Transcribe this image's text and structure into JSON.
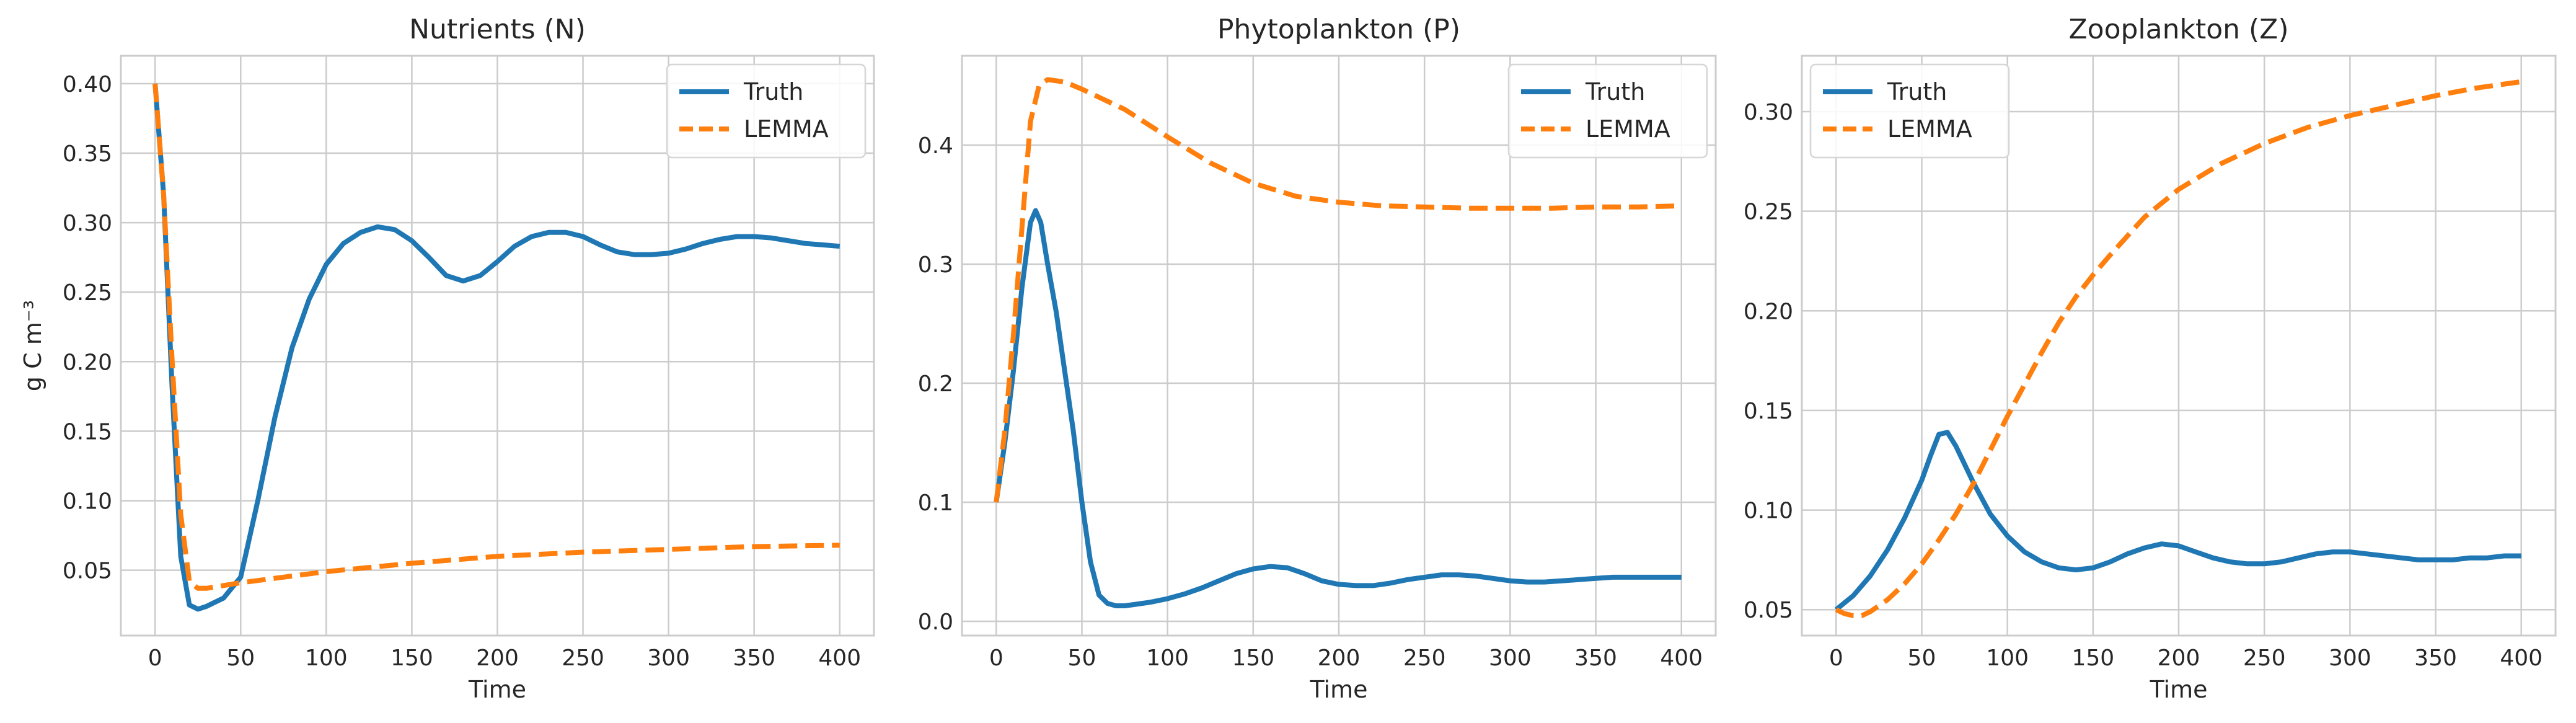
{
  "colors": {
    "truth": "#1f77b4",
    "lemma": "#ff7f0e",
    "grid": "#cccccc",
    "frame": "#cccccc"
  },
  "chart_data": [
    {
      "type": "line",
      "title": "Nutrients (N)",
      "xlabel": "Time",
      "ylabel": "g C m⁻³",
      "xlim": [
        -20,
        420
      ],
      "ylim": [
        0.003,
        0.42
      ],
      "xticks": [
        0,
        50,
        100,
        150,
        200,
        250,
        300,
        350,
        400
      ],
      "yticks": [
        0.05,
        0.1,
        0.15,
        0.2,
        0.25,
        0.3,
        0.35,
        0.4
      ],
      "ytick_labels": [
        "0.05",
        "0.10",
        "0.15",
        "0.20",
        "0.25",
        "0.30",
        "0.35",
        "0.40"
      ],
      "grid": true,
      "legend": "top-right",
      "series": [
        {
          "name": "Truth",
          "style": "solid",
          "color": "#1f77b4",
          "x": [
            0,
            5,
            10,
            15,
            20,
            25,
            30,
            40,
            50,
            60,
            70,
            80,
            90,
            100,
            110,
            120,
            130,
            140,
            150,
            160,
            170,
            180,
            190,
            200,
            210,
            220,
            230,
            240,
            250,
            260,
            270,
            280,
            290,
            300,
            310,
            320,
            330,
            340,
            350,
            360,
            370,
            380,
            390,
            400
          ],
          "y": [
            0.4,
            0.32,
            0.18,
            0.06,
            0.025,
            0.022,
            0.024,
            0.03,
            0.045,
            0.1,
            0.16,
            0.21,
            0.245,
            0.27,
            0.285,
            0.293,
            0.297,
            0.295,
            0.287,
            0.275,
            0.262,
            0.258,
            0.262,
            0.272,
            0.283,
            0.29,
            0.293,
            0.293,
            0.29,
            0.284,
            0.279,
            0.277,
            0.277,
            0.278,
            0.281,
            0.285,
            0.288,
            0.29,
            0.29,
            0.289,
            0.287,
            0.285,
            0.284,
            0.283
          ]
        },
        {
          "name": "LEMMA",
          "style": "dashed",
          "color": "#ff7f0e",
          "x": [
            0,
            5,
            10,
            15,
            20,
            25,
            30,
            40,
            50,
            75,
            100,
            150,
            200,
            250,
            300,
            350,
            400
          ],
          "y": [
            0.4,
            0.32,
            0.2,
            0.09,
            0.042,
            0.037,
            0.037,
            0.039,
            0.041,
            0.045,
            0.049,
            0.055,
            0.06,
            0.063,
            0.065,
            0.067,
            0.068
          ]
        }
      ]
    },
    {
      "type": "line",
      "title": "Phytoplankton (P)",
      "xlabel": "Time",
      "ylabel": "",
      "xlim": [
        -20,
        420
      ],
      "ylim": [
        -0.012,
        0.475
      ],
      "xticks": [
        0,
        50,
        100,
        150,
        200,
        250,
        300,
        350,
        400
      ],
      "yticks": [
        0.0,
        0.1,
        0.2,
        0.3,
        0.4
      ],
      "ytick_labels": [
        "0.0",
        "0.1",
        "0.2",
        "0.3",
        "0.4"
      ],
      "grid": true,
      "legend": "top-right",
      "series": [
        {
          "name": "Truth",
          "style": "solid",
          "color": "#1f77b4",
          "x": [
            0,
            5,
            10,
            15,
            20,
            23,
            26,
            30,
            35,
            40,
            45,
            50,
            55,
            60,
            65,
            70,
            75,
            80,
            90,
            100,
            110,
            120,
            130,
            140,
            150,
            160,
            170,
            180,
            190,
            200,
            210,
            220,
            230,
            240,
            250,
            260,
            270,
            280,
            290,
            300,
            310,
            320,
            330,
            340,
            350,
            360,
            370,
            380,
            390,
            400
          ],
          "y": [
            0.1,
            0.15,
            0.21,
            0.28,
            0.335,
            0.345,
            0.335,
            0.3,
            0.26,
            0.21,
            0.16,
            0.1,
            0.05,
            0.022,
            0.015,
            0.013,
            0.013,
            0.014,
            0.016,
            0.019,
            0.023,
            0.028,
            0.034,
            0.04,
            0.044,
            0.046,
            0.045,
            0.04,
            0.034,
            0.031,
            0.03,
            0.03,
            0.032,
            0.035,
            0.037,
            0.039,
            0.039,
            0.038,
            0.036,
            0.034,
            0.033,
            0.033,
            0.034,
            0.035,
            0.036,
            0.037,
            0.037,
            0.037,
            0.037,
            0.037
          ]
        },
        {
          "name": "LEMMA",
          "style": "dashed",
          "color": "#ff7f0e",
          "x": [
            0,
            5,
            10,
            15,
            20,
            25,
            30,
            40,
            50,
            75,
            100,
            125,
            150,
            175,
            200,
            225,
            250,
            275,
            300,
            325,
            350,
            375,
            400
          ],
          "y": [
            0.1,
            0.16,
            0.24,
            0.33,
            0.42,
            0.45,
            0.455,
            0.453,
            0.447,
            0.43,
            0.407,
            0.385,
            0.368,
            0.357,
            0.352,
            0.349,
            0.348,
            0.347,
            0.347,
            0.347,
            0.348,
            0.348,
            0.349
          ]
        }
      ]
    },
    {
      "type": "line",
      "title": "Zooplankton (Z)",
      "xlabel": "Time",
      "ylabel": "",
      "xlim": [
        -20,
        420
      ],
      "ylim": [
        0.037,
        0.328
      ],
      "xticks": [
        0,
        50,
        100,
        150,
        200,
        250,
        300,
        350,
        400
      ],
      "yticks": [
        0.05,
        0.1,
        0.15,
        0.2,
        0.25,
        0.3
      ],
      "ytick_labels": [
        "0.05",
        "0.10",
        "0.15",
        "0.20",
        "0.25",
        "0.30"
      ],
      "grid": true,
      "legend": "top-left",
      "series": [
        {
          "name": "Truth",
          "style": "solid",
          "color": "#1f77b4",
          "x": [
            0,
            10,
            20,
            30,
            40,
            50,
            55,
            60,
            65,
            70,
            80,
            90,
            100,
            110,
            120,
            130,
            140,
            150,
            160,
            170,
            180,
            190,
            200,
            210,
            220,
            230,
            240,
            250,
            260,
            270,
            280,
            290,
            300,
            310,
            320,
            330,
            340,
            350,
            360,
            370,
            380,
            390,
            400
          ],
          "y": [
            0.05,
            0.057,
            0.067,
            0.08,
            0.096,
            0.115,
            0.127,
            0.138,
            0.139,
            0.132,
            0.114,
            0.098,
            0.087,
            0.079,
            0.074,
            0.071,
            0.07,
            0.071,
            0.074,
            0.078,
            0.081,
            0.083,
            0.082,
            0.079,
            0.076,
            0.074,
            0.073,
            0.073,
            0.074,
            0.076,
            0.078,
            0.079,
            0.079,
            0.078,
            0.077,
            0.076,
            0.075,
            0.075,
            0.075,
            0.076,
            0.076,
            0.077,
            0.077
          ]
        },
        {
          "name": "LEMMA",
          "style": "dashed",
          "color": "#ff7f0e",
          "x": [
            0,
            5,
            10,
            15,
            20,
            30,
            40,
            50,
            60,
            70,
            80,
            90,
            100,
            110,
            120,
            130,
            140,
            150,
            160,
            180,
            200,
            225,
            250,
            275,
            300,
            325,
            350,
            375,
            400
          ],
          "y": [
            0.05,
            0.048,
            0.047,
            0.047,
            0.049,
            0.055,
            0.063,
            0.073,
            0.085,
            0.098,
            0.113,
            0.13,
            0.147,
            0.163,
            0.179,
            0.194,
            0.207,
            0.218,
            0.228,
            0.247,
            0.261,
            0.274,
            0.284,
            0.292,
            0.298,
            0.303,
            0.308,
            0.312,
            0.315
          ]
        }
      ]
    }
  ]
}
